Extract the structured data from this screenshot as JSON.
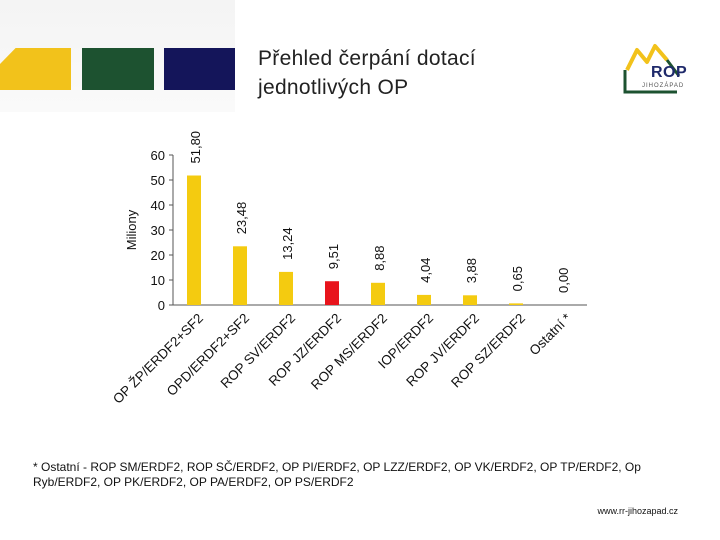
{
  "header": {
    "title": "Přehled čerpání dotací\njednotlivých OP",
    "logo_name": "ROP",
    "logo_sub": "JIHOZÁPAD"
  },
  "colors": {
    "yellow": "#f4cb10",
    "black": "#111111",
    "red": "#e8141c",
    "axis": "#555555"
  },
  "chart_data": {
    "type": "bar",
    "title": "",
    "xlabel": "",
    "ylabel": "Miliony",
    "ylim": [
      0,
      60
    ],
    "yticks": [
      0,
      10,
      20,
      30,
      40,
      50,
      60
    ],
    "categories": [
      "OP ŽP/ERDF2+SF2",
      "OPD/ERDF2+SF2",
      "ROP SV/ERDF2",
      "ROP JZ/ERDF2",
      "ROP MS/ERDF2",
      "IOP/ERDF2",
      "ROP JV/ERDF2",
      "ROP SZ/ERDF2",
      "Ostatní *"
    ],
    "series": [
      {
        "name": "main",
        "values": [
          51.8,
          23.48,
          13.24,
          9.51,
          8.88,
          4.04,
          3.88,
          0.65,
          0.0
        ]
      },
      {
        "name": "shadow",
        "values": [
          50.5,
          22.0,
          11.8,
          8.0,
          7.5,
          2.8,
          2.6,
          0.2,
          0.0
        ]
      }
    ],
    "data_labels": [
      "51,80",
      "23,48",
      "13,24",
      "9,51",
      "8,88",
      "4,04",
      "3,88",
      "0,65",
      "0,00"
    ],
    "highlight_index": 3,
    "grid": false,
    "legend": "none"
  },
  "footnote": "* Ostatní - ROP SM/ERDF2, ROP SČ/ERDF2, OP PI/ERDF2, OP LZZ/ERDF2, OP VK/ERDF2, OP TP/ERDF2, Op Ryb/ERDF2, OP PK/ERDF2, OP PA/ERDF2, OP PS/ERDF2",
  "website": "www.rr-jihozapad.cz"
}
